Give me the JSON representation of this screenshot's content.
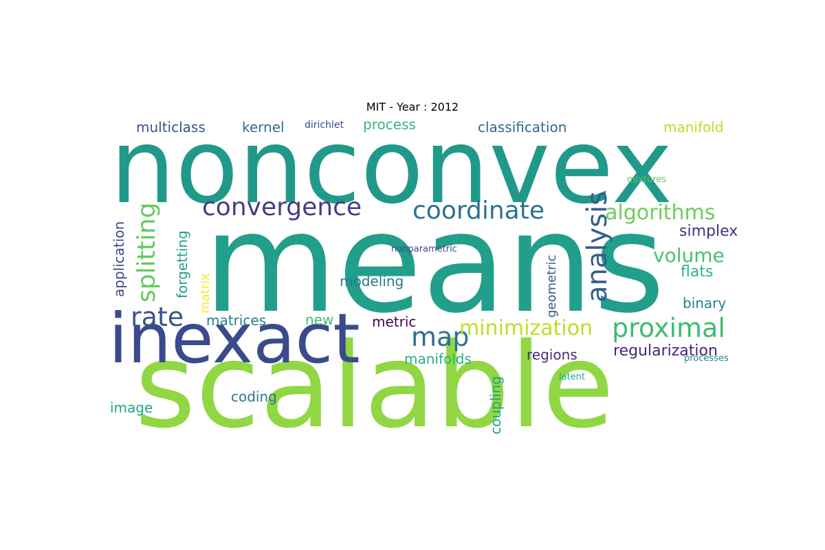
{
  "title": "MIT - Year : 2012",
  "words": [
    {
      "text": "nonconvex",
      "color": "#21998a"
    },
    {
      "text": "means",
      "color": "#229f8a"
    },
    {
      "text": "scalable",
      "color": "#90d743"
    },
    {
      "text": "inexact",
      "color": "#3b4a8c"
    },
    {
      "text": "convergence",
      "color": "#433e85"
    },
    {
      "text": "coordinate",
      "color": "#2c728e"
    },
    {
      "text": "analysis",
      "color": "#365d8d"
    },
    {
      "text": "algorithms",
      "color": "#6ccd5a"
    },
    {
      "text": "splitting",
      "color": "#62cb5f"
    },
    {
      "text": "rate",
      "color": "#3b528b"
    },
    {
      "text": "map",
      "color": "#2d708e"
    },
    {
      "text": "minimization",
      "color": "#bddf26"
    },
    {
      "text": "proximal",
      "color": "#3dbc74"
    },
    {
      "text": "volume",
      "color": "#4ac16d"
    },
    {
      "text": "simplex",
      "color": "#46307e"
    },
    {
      "text": "flats",
      "color": "#2fb47c"
    },
    {
      "text": "binary",
      "color": "#277f8e"
    },
    {
      "text": "regularization",
      "color": "#482576"
    },
    {
      "text": "processes",
      "color": "#25848e"
    },
    {
      "text": "latent",
      "color": "#1fa187"
    },
    {
      "text": "regions",
      "color": "#472c7a"
    },
    {
      "text": "coupling",
      "color": "#20a386"
    },
    {
      "text": "manifolds",
      "color": "#2ab07f"
    },
    {
      "text": "metric",
      "color": "#440154"
    },
    {
      "text": "new",
      "color": "#3dbc74"
    },
    {
      "text": "modeling",
      "color": "#2a768e"
    },
    {
      "text": "geometric",
      "color": "#39568c"
    },
    {
      "text": "nonparametric",
      "color": "#414487"
    },
    {
      "text": "matrices",
      "color": "#287d8e"
    },
    {
      "text": "coding",
      "color": "#2b758e"
    },
    {
      "text": "image",
      "color": "#20a486"
    },
    {
      "text": "application",
      "color": "#3e4a89"
    },
    {
      "text": "forgetting",
      "color": "#1fa088"
    },
    {
      "text": "matrix",
      "color": "#fde725"
    },
    {
      "text": "multiclass",
      "color": "#3b528b"
    },
    {
      "text": "kernel",
      "color": "#2e6f8e"
    },
    {
      "text": "dirichlet",
      "color": "#3e4989"
    },
    {
      "text": "process",
      "color": "#35b779"
    },
    {
      "text": "classification",
      "color": "#31688e"
    },
    {
      "text": "manifold",
      "color": "#b5de2b"
    },
    {
      "text": "mixtures",
      "color": "#5ec962"
    }
  ]
}
